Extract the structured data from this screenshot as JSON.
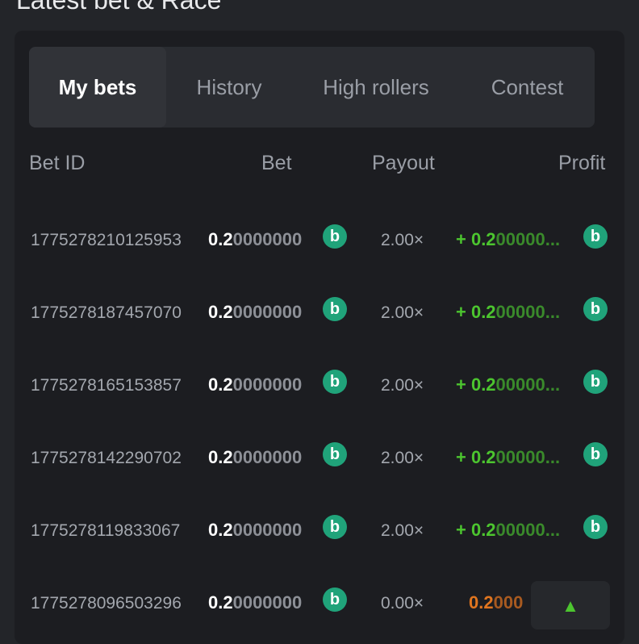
{
  "title": "Latest bet & Race",
  "tabs": [
    {
      "label": "My bets",
      "active": true
    },
    {
      "label": "History"
    },
    {
      "label": "High rollers"
    },
    {
      "label": "Contest"
    }
  ],
  "columns": {
    "bet_id": "Bet ID",
    "bet": "Bet",
    "payout": "Payout",
    "profit": "Profit"
  },
  "coin_icon": "bc-coin-icon",
  "colors": {
    "win": "#4cc52f",
    "loss": "#e0751f",
    "coin": "#20a37a"
  },
  "rows": [
    {
      "id": "1775278210125953",
      "bet_main": "0.2",
      "bet_rest": "0000000",
      "payout": "2.00×",
      "profit_main": "+ 0.2",
      "profit_rest": "00000...",
      "result": "win"
    },
    {
      "id": "1775278187457070",
      "bet_main": "0.2",
      "bet_rest": "0000000",
      "payout": "2.00×",
      "profit_main": "+ 0.2",
      "profit_rest": "00000...",
      "result": "win"
    },
    {
      "id": "1775278165153857",
      "bet_main": "0.2",
      "bet_rest": "0000000",
      "payout": "2.00×",
      "profit_main": "+ 0.2",
      "profit_rest": "00000...",
      "result": "win"
    },
    {
      "id": "1775278142290702",
      "bet_main": "0.2",
      "bet_rest": "0000000",
      "payout": "2.00×",
      "profit_main": "+ 0.2",
      "profit_rest": "00000...",
      "result": "win"
    },
    {
      "id": "1775278119833067",
      "bet_main": "0.2",
      "bet_rest": "0000000",
      "payout": "2.00×",
      "profit_main": "+ 0.2",
      "profit_rest": "00000...",
      "result": "win"
    },
    {
      "id": "1775278096503296",
      "bet_main": "0.2",
      "bet_rest": "0000000",
      "payout": "0.00×",
      "profit_main": "0.2",
      "profit_rest": "000",
      "result": "loss"
    }
  ],
  "scroll_top_icon": "chevron-up-icon"
}
